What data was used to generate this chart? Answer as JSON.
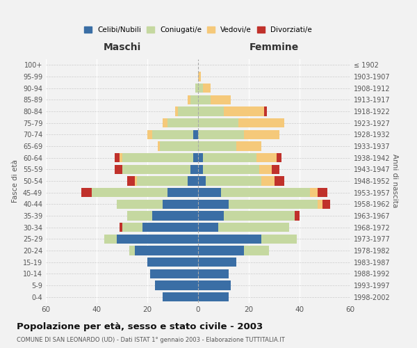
{
  "age_groups": [
    "0-4",
    "5-9",
    "10-14",
    "15-19",
    "20-24",
    "25-29",
    "30-34",
    "35-39",
    "40-44",
    "45-49",
    "50-54",
    "55-59",
    "60-64",
    "65-69",
    "70-74",
    "75-79",
    "80-84",
    "85-89",
    "90-94",
    "95-99",
    "100+"
  ],
  "birth_years": [
    "1998-2002",
    "1993-1997",
    "1988-1992",
    "1983-1987",
    "1978-1982",
    "1973-1977",
    "1968-1972",
    "1963-1967",
    "1958-1962",
    "1953-1957",
    "1948-1952",
    "1943-1947",
    "1938-1942",
    "1933-1937",
    "1928-1932",
    "1923-1927",
    "1918-1922",
    "1913-1917",
    "1908-1912",
    "1903-1907",
    "≤ 1902"
  ],
  "male": {
    "celibe": [
      14,
      17,
      19,
      20,
      25,
      32,
      22,
      18,
      14,
      12,
      4,
      3,
      2,
      0,
      2,
      0,
      0,
      0,
      0,
      0,
      0
    ],
    "coniugato": [
      0,
      0,
      0,
      0,
      2,
      5,
      8,
      10,
      18,
      30,
      20,
      27,
      28,
      15,
      16,
      12,
      8,
      3,
      1,
      0,
      0
    ],
    "vedovo": [
      0,
      0,
      0,
      0,
      0,
      0,
      0,
      0,
      0,
      0,
      1,
      0,
      1,
      1,
      2,
      2,
      1,
      1,
      0,
      0,
      0
    ],
    "divorziato": [
      0,
      0,
      0,
      0,
      0,
      0,
      1,
      0,
      0,
      4,
      3,
      3,
      2,
      0,
      0,
      0,
      0,
      0,
      0,
      0,
      0
    ]
  },
  "female": {
    "nubile": [
      12,
      13,
      12,
      15,
      18,
      25,
      8,
      10,
      12,
      9,
      3,
      2,
      2,
      0,
      0,
      0,
      0,
      0,
      0,
      0,
      0
    ],
    "coniugata": [
      0,
      0,
      0,
      0,
      10,
      14,
      28,
      28,
      35,
      35,
      22,
      22,
      21,
      15,
      18,
      16,
      10,
      5,
      2,
      0,
      0
    ],
    "vedova": [
      0,
      0,
      0,
      0,
      0,
      0,
      0,
      0,
      2,
      3,
      5,
      5,
      8,
      10,
      14,
      18,
      16,
      8,
      3,
      1,
      0
    ],
    "divorziata": [
      0,
      0,
      0,
      0,
      0,
      0,
      0,
      2,
      3,
      4,
      4,
      3,
      2,
      0,
      0,
      0,
      1,
      0,
      0,
      0,
      0
    ]
  },
  "colors": {
    "celibe": "#3a6ea5",
    "coniugato": "#c5d8a0",
    "vedovo": "#f5c97a",
    "divorziato": "#c0312b"
  },
  "xlim": 60,
  "title": "Popolazione per età, sesso e stato civile - 2003",
  "subtitle": "COMUNE DI SAN LEONARDO (UD) - Dati ISTAT 1° gennaio 2003 - Elaborazione TUTTITALIA.IT",
  "ylabel_left": "Fasce di età",
  "ylabel_right": "Anni di nascita",
  "xlabel_left": "Maschi",
  "xlabel_right": "Femmine",
  "legend_labels": [
    "Celibi/Nubili",
    "Coniugati/e",
    "Vedovi/e",
    "Divorziati/e"
  ],
  "background_color": "#f2f2f2"
}
